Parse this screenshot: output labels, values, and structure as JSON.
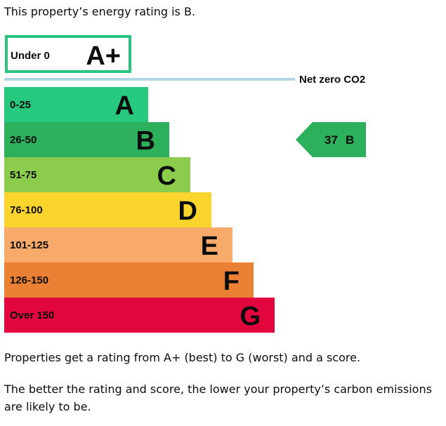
{
  "intro": "This property’s energy rating is B.",
  "chart_data": {
    "type": "bar",
    "categories": [
      "A+",
      "A",
      "B",
      "C",
      "D",
      "E",
      "F",
      "G"
    ],
    "bands": [
      {
        "letter": "A+",
        "range": "Under 0",
        "color": "#ffffff",
        "border": "#2ac481",
        "range_color": "#0b0c0c",
        "letter_color": "#0b0c0c"
      },
      {
        "letter": "A",
        "range": "0-25",
        "color": "#27c97f",
        "range_color": "#0b0c0c",
        "letter_color": "#0b0c0c"
      },
      {
        "letter": "B",
        "range": "26-50",
        "color": "#2db05c",
        "range_color": "#0b0c0c",
        "letter_color": "#0b0c0c"
      },
      {
        "letter": "C",
        "range": "51-75",
        "color": "#8ccc4c",
        "range_color": "#0b0c0c",
        "letter_color": "#0b0c0c"
      },
      {
        "letter": "D",
        "range": "76-100",
        "color": "#fbd52e",
        "range_color": "#0b0c0c",
        "letter_color": "#0b0c0c"
      },
      {
        "letter": "E",
        "range": "101-125",
        "color": "#f8aa6b",
        "range_color": "#0b0c0c",
        "letter_color": "#0b0c0c"
      },
      {
        "letter": "F",
        "range": "126-150",
        "color": "#e98034",
        "range_color": "#0b0c0c",
        "letter_color": "#0b0c0c"
      },
      {
        "letter": "G",
        "range": "Over 150",
        "color": "#e2063e",
        "range_color": "#0b0c0c",
        "letter_color": "#0b0c0c"
      }
    ],
    "net_zero_label": "Net zero CO2",
    "net_zero_line_color": "#b3d4e4",
    "current_rating": {
      "score": 37,
      "letter": "B",
      "color": "#2db05c"
    }
  },
  "paragraph_1": "Properties get a rating from A+ (best) to G (worst) and a score.",
  "paragraph_2": "The better the rating and score, the lower your property’s carbon emissions are likely to be."
}
